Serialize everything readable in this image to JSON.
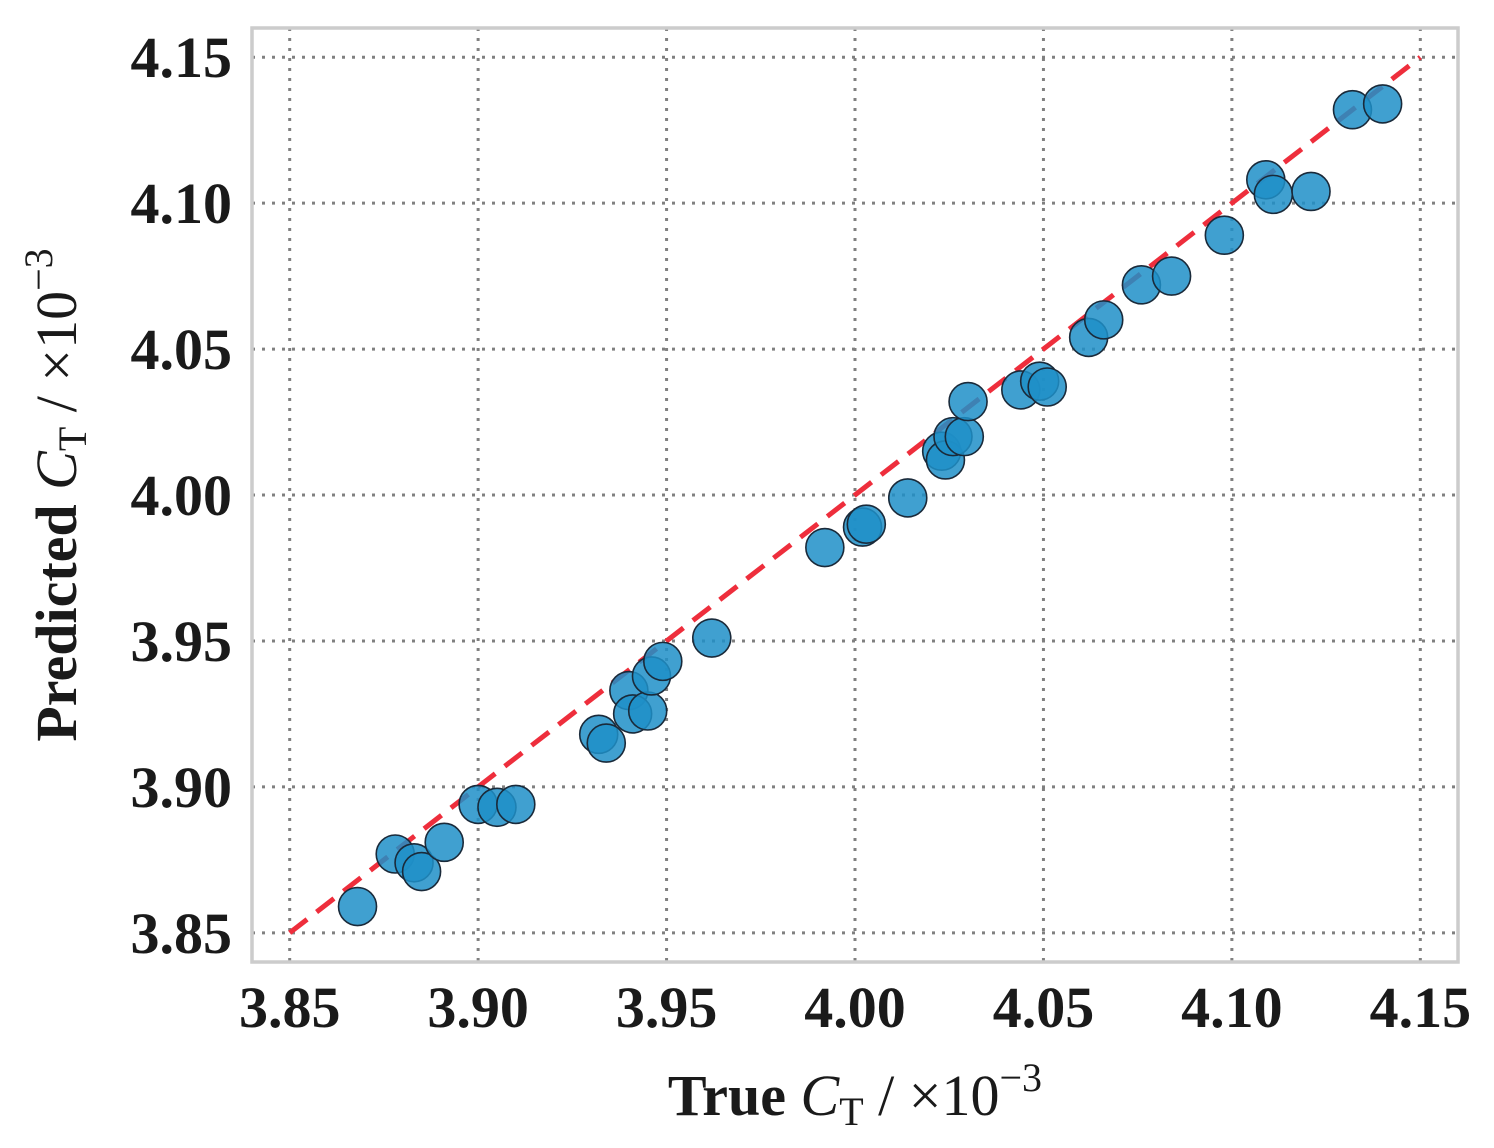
{
  "chart_data": {
    "type": "scatter",
    "xlabel": {
      "prefix": "True ",
      "var": "C",
      "sub": "T",
      "suffix": " / ×10",
      "sup": "−3"
    },
    "ylabel": {
      "prefix": "Predicted ",
      "var": "C",
      "sub": "T",
      "suffix": " / ×10",
      "sup": "−3"
    },
    "xlim": [
      3.84,
      4.16
    ],
    "ylim": [
      3.84,
      4.16
    ],
    "xticks": [
      "3.85",
      "3.90",
      "3.95",
      "4.00",
      "4.05",
      "4.10",
      "4.15"
    ],
    "yticks": [
      "3.85",
      "3.90",
      "3.95",
      "4.00",
      "4.05",
      "4.10",
      "4.15"
    ],
    "grid": true,
    "reference_line": {
      "x": [
        3.85,
        4.15
      ],
      "y": [
        3.85,
        4.15
      ],
      "color": "#ee2e3c",
      "style": "dashed"
    },
    "point_color": "#1f8fc8",
    "points": [
      [
        3.868,
        3.859
      ],
      [
        3.878,
        3.877
      ],
      [
        3.883,
        3.874
      ],
      [
        3.885,
        3.871
      ],
      [
        3.891,
        3.881
      ],
      [
        3.9,
        3.894
      ],
      [
        3.905,
        3.893
      ],
      [
        3.91,
        3.894
      ],
      [
        3.932,
        3.918
      ],
      [
        3.934,
        3.915
      ],
      [
        3.94,
        3.933
      ],
      [
        3.941,
        3.925
      ],
      [
        3.945,
        3.926
      ],
      [
        3.946,
        3.938
      ],
      [
        3.949,
        3.943
      ],
      [
        3.962,
        3.951
      ],
      [
        3.992,
        3.982
      ],
      [
        4.002,
        3.989
      ],
      [
        4.003,
        3.99
      ],
      [
        4.014,
        3.999
      ],
      [
        4.023,
        4.015
      ],
      [
        4.024,
        4.012
      ],
      [
        4.026,
        4.02
      ],
      [
        4.029,
        4.02
      ],
      [
        4.03,
        4.032
      ],
      [
        4.044,
        4.036
      ],
      [
        4.049,
        4.039
      ],
      [
        4.051,
        4.037
      ],
      [
        4.062,
        4.054
      ],
      [
        4.066,
        4.06
      ],
      [
        4.076,
        4.072
      ],
      [
        4.084,
        4.075
      ],
      [
        4.098,
        4.089
      ],
      [
        4.109,
        4.108
      ],
      [
        4.111,
        4.103
      ],
      [
        4.121,
        4.104
      ],
      [
        4.132,
        4.132
      ],
      [
        4.14,
        4.134
      ]
    ]
  }
}
